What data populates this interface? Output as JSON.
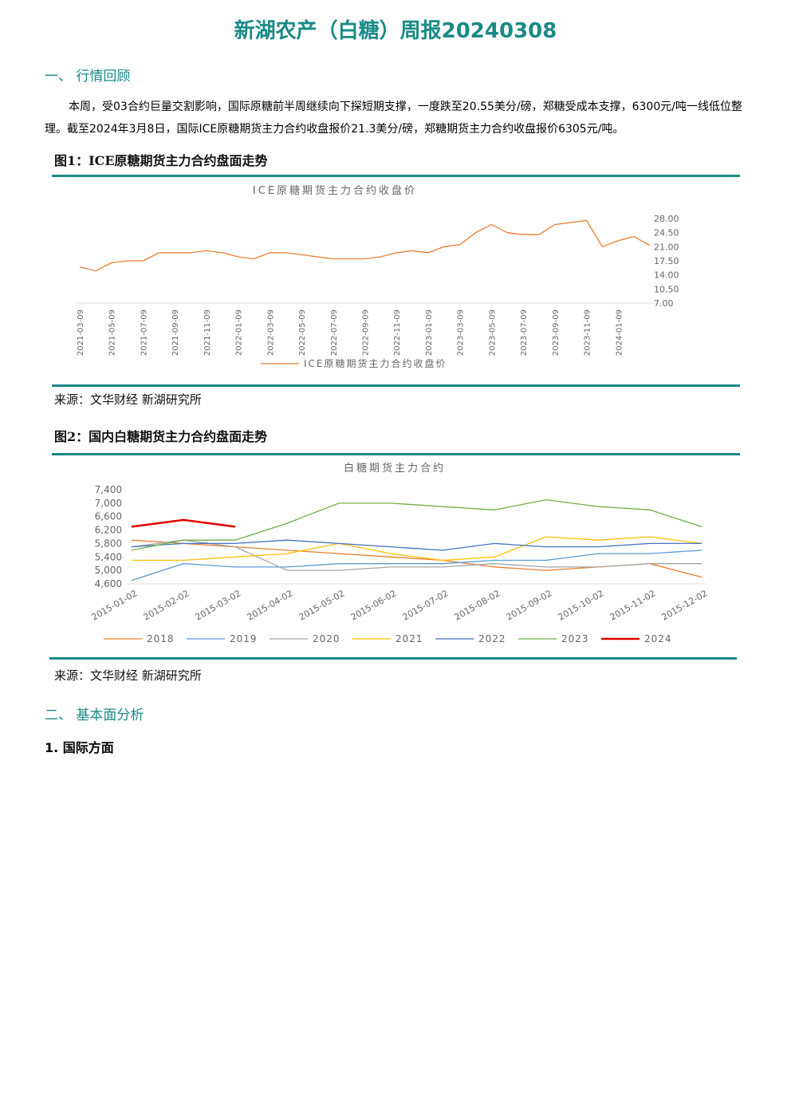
{
  "header": {
    "title": "新湖农产（白糖）周报20240308"
  },
  "sections": [
    {
      "heading": "一、 行情回顾",
      "paragraph": "本周，受03合约巨量交割影响，国际原糖前半周继续向下探短期支撑，一度跌至20.55美分/磅，郑糖受成本支撑，6300元/吨一线低位整理。截至2024年3月8日，国际ICE原糖期货主力合约收盘报价21.3美分/磅，郑糖期货主力合约收盘报价6305元/吨。"
    },
    {
      "heading": "二、 基本面分析",
      "subheading": "1. 国际方面"
    }
  ],
  "figures": [
    {
      "caption": "图1：ICE原糖期货主力合约盘面走势",
      "source": "来源：文华财经 新湖研究所"
    },
    {
      "caption": "图2：国内白糖期货主力合约盘面走势",
      "source": "来源：文华财经 新湖研究所"
    }
  ],
  "chart_data": [
    {
      "type": "line",
      "title": "ICE原糖期货主力合约收盘价",
      "categories": [
        "2021-03-09",
        null,
        "2021-05-09",
        null,
        "2021-07-09",
        null,
        "2021-09-09",
        null,
        "2021-11-09",
        null,
        "2022-01-09",
        null,
        "2022-03-09",
        null,
        "2022-05-09",
        null,
        "2022-07-09",
        null,
        "2022-09-09",
        null,
        "2022-11-09",
        null,
        "2023-01-09",
        null,
        "2023-03-09",
        null,
        "2023-05-09",
        null,
        "2023-07-09",
        null,
        "2023-09-09",
        null,
        "2023-11-09",
        null,
        "2024-01-09",
        null,
        null
      ],
      "series": [
        {
          "name": "ICE原糖期货主力合约收盘价",
          "color": "#ed7d31",
          "values": [
            16,
            15,
            17,
            17.5,
            17.5,
            19.5,
            19.5,
            19.5,
            20,
            19.5,
            18.5,
            18,
            19.5,
            19.5,
            19,
            18.5,
            18,
            18,
            18,
            18.5,
            19.5,
            20,
            19.5,
            21,
            21.5,
            24.5,
            26.5,
            24.5,
            24,
            24,
            26.5,
            27,
            27.5,
            21,
            22.5,
            23.5,
            21.3
          ]
        }
      ],
      "ylim": [
        7,
        28
      ],
      "yticks": [
        {
          "value": 7,
          "label": "7.00"
        },
        {
          "value": 10.5,
          "label": "10.50"
        },
        {
          "value": 14,
          "label": "14.00"
        },
        {
          "value": 17.5,
          "label": "17.50"
        },
        {
          "value": 21,
          "label": "21.00"
        },
        {
          "value": 24.5,
          "label": "24.50"
        },
        {
          "value": 28,
          "label": "28.00"
        }
      ],
      "axis_side": "right",
      "legend": "bottom"
    },
    {
      "type": "line",
      "title": "白糖期货主力合约",
      "categories": [
        "2015-01-02",
        "2015-02-02",
        "2015-03-02",
        "2015-04-02",
        "2015-05-02",
        "2015-06-02",
        "2015-07-02",
        "2015-08-02",
        "2015-09-02",
        "2015-10-02",
        "2015-11-02",
        "2015-12-02"
      ],
      "series": [
        {
          "name": "2018",
          "color": "#ed7d31",
          "values": [
            5900,
            5800,
            5700,
            5600,
            5500,
            5400,
            5300,
            5100,
            5000,
            5100,
            5200,
            4800
          ]
        },
        {
          "name": "2019",
          "color": "#5b9bd5",
          "values": [
            4700,
            5200,
            5100,
            5100,
            5200,
            5200,
            5200,
            5300,
            5300,
            5500,
            5500,
            5600
          ]
        },
        {
          "name": "2020",
          "color": "#a5a5a5",
          "values": [
            5700,
            5900,
            5700,
            5000,
            5000,
            5100,
            5100,
            5200,
            5100,
            5100,
            5200,
            5200
          ]
        },
        {
          "name": "2021",
          "color": "#ffc000",
          "values": [
            5300,
            5300,
            5400,
            5500,
            5800,
            5500,
            5300,
            5400,
            6000,
            5900,
            6000,
            5800
          ]
        },
        {
          "name": "2022",
          "color": "#4472c4",
          "values": [
            5700,
            5800,
            5800,
            5900,
            5800,
            5700,
            5600,
            5800,
            5700,
            5700,
            5800,
            5800
          ]
        },
        {
          "name": "2023",
          "color": "#70ad47",
          "values": [
            5600,
            5900,
            5900,
            6400,
            7000,
            7000,
            6900,
            6800,
            7100,
            6900,
            6800,
            6300
          ]
        },
        {
          "name": "2024",
          "color": "#e00000",
          "values": [
            6300,
            6500,
            6300,
            null,
            null,
            null,
            null,
            null,
            null,
            null,
            null,
            null
          ]
        }
      ],
      "ylim": [
        4600,
        7400
      ],
      "yticks": [
        {
          "value": 4600,
          "label": "4,600"
        },
        {
          "value": 5000,
          "label": "5,000"
        },
        {
          "value": 5400,
          "label": "5,400"
        },
        {
          "value": 5800,
          "label": "5,800"
        },
        {
          "value": 6200,
          "label": "6,200"
        },
        {
          "value": 6600,
          "label": "6,600"
        },
        {
          "value": 7000,
          "label": "7,000"
        },
        {
          "value": 7400,
          "label": "7,400"
        }
      ],
      "axis_side": "left",
      "legend": "bottom"
    }
  ]
}
